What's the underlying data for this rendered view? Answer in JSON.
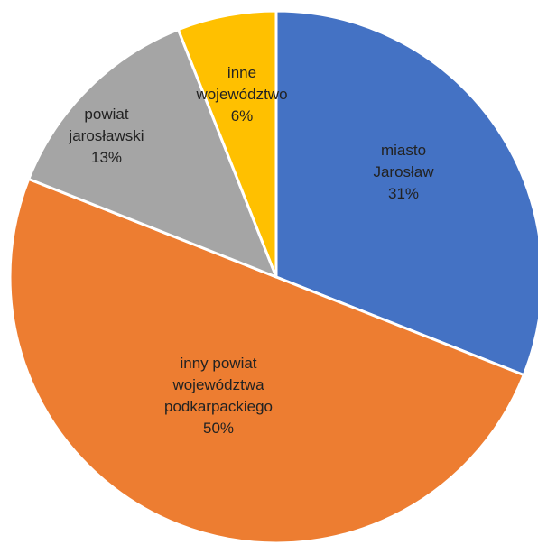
{
  "chart_data": {
    "type": "pie",
    "title": "",
    "slices": [
      {
        "name": "miasto Jarosław",
        "value": 31,
        "label_lines": [
          "miasto",
          "Jarosław",
          "31%"
        ],
        "color": "#4472C4"
      },
      {
        "name": "inny powiat województwa podkarpackiego",
        "value": 50,
        "label_lines": [
          "inny powiat",
          "województwa",
          "podkarpackiego",
          "50%"
        ],
        "color": "#ED7D31"
      },
      {
        "name": "powiat jarosławski",
        "value": 13,
        "label_lines": [
          "powiat",
          "jarosławski",
          "13%"
        ],
        "color": "#A5A5A5"
      },
      {
        "name": "inne województwo",
        "value": 6,
        "label_lines": [
          "inne",
          "województwo",
          "6%"
        ],
        "color": "#FFC000"
      }
    ],
    "legend": false
  }
}
